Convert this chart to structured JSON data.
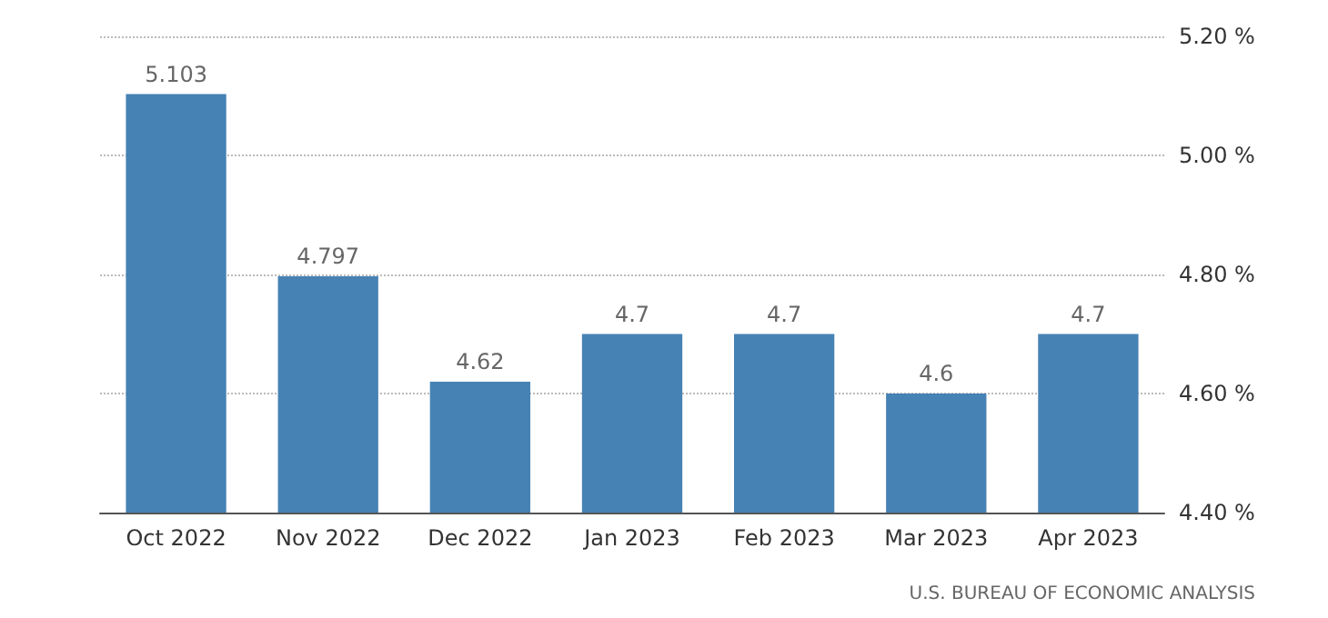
{
  "chart_data": {
    "type": "bar",
    "categories": [
      "Oct 2022",
      "Nov 2022",
      "Dec 2022",
      "Jan 2023",
      "Feb 2023",
      "Mar 2023",
      "Apr 2023"
    ],
    "values": [
      5.103,
      4.797,
      4.62,
      4.7,
      4.7,
      4.6,
      4.7
    ],
    "color": "#4682b4",
    "ylim": [
      4.4,
      5.2
    ],
    "yticks": [
      {
        "value": 4.4,
        "label": "4.40 %"
      },
      {
        "value": 4.6,
        "label": "4.60 %"
      },
      {
        "value": 4.8,
        "label": "4.80 %"
      },
      {
        "value": 5.0,
        "label": "5.00 %"
      },
      {
        "value": 5.2,
        "label": "5.20 %"
      }
    ],
    "grid": "y",
    "data_labels": true,
    "annotations": [
      "U.S. BUREAU OF ECONOMIC ANALYSIS"
    ]
  }
}
